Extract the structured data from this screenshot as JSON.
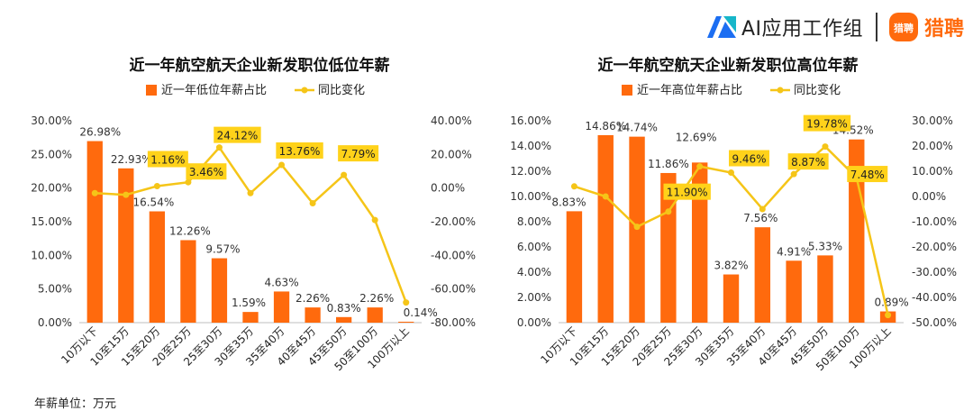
{
  "brand": {
    "ai_group_label": "AI应用工作组",
    "logo_icon_text": "猎聘",
    "liepin_label": "猎聘"
  },
  "footnote": "年薪单位：万元",
  "chart_data": [
    {
      "type": "bar+line",
      "title": "近一年航空航天企业新发职位低位年薪",
      "categories": [
        "10万以下",
        "10至15万",
        "15至20万",
        "20至25万",
        "25至30万",
        "30至35万",
        "35至40万",
        "40至45万",
        "45至50万",
        "50至100万",
        "100万以上"
      ],
      "series": [
        {
          "name": "近一年低位年薪占比",
          "type": "bar",
          "axis": "left",
          "color": "#ff6a0d",
          "values": [
            26.98,
            22.93,
            16.54,
            12.26,
            9.57,
            1.59,
            4.63,
            2.26,
            0.83,
            2.26,
            0.14
          ],
          "labels": [
            "26.98%",
            "22.93%",
            "16.54%",
            "12.26%",
            "9.57%",
            "1.59%",
            "4.63%",
            "2.26%",
            "0.83%",
            "2.26%",
            "0.14%"
          ]
        },
        {
          "name": "同比变化",
          "type": "line",
          "axis": "right",
          "color": "#f5c518",
          "values": [
            -3,
            -4,
            1.16,
            3.46,
            24.12,
            -3,
            13.76,
            -9,
            7.79,
            -19,
            -68
          ]
        }
      ],
      "highlighted_labels": [
        {
          "index": 2,
          "text": "1.16%"
        },
        {
          "index": 3,
          "text": "3.46%"
        },
        {
          "index": 4,
          "text": "24.12%"
        },
        {
          "index": 6,
          "text": "13.76%"
        },
        {
          "index": 8,
          "text": "7.79%"
        }
      ],
      "y_left": {
        "min": 0,
        "max": 30,
        "step": 5,
        "ticks": [
          "0.00%",
          "5.00%",
          "10.00%",
          "15.00%",
          "20.00%",
          "25.00%",
          "30.00%"
        ]
      },
      "y_right": {
        "min": -80,
        "max": 40,
        "step": 20,
        "ticks": [
          "-80.00%",
          "-60.00%",
          "-40.00%",
          "-20.00%",
          "0.00%",
          "20.00%",
          "40.00%"
        ]
      },
      "legend": "top",
      "grid": false
    },
    {
      "type": "bar+line",
      "title": "近一年航空航天企业新发职位高位年薪",
      "categories": [
        "10万以下",
        "10至15万",
        "15至20万",
        "20至25万",
        "25至30万",
        "30至35万",
        "35至40万",
        "40至45万",
        "45至50万",
        "50至100万",
        "100万以上"
      ],
      "series": [
        {
          "name": "近一年高位年薪占比",
          "type": "bar",
          "axis": "left",
          "color": "#ff6a0d",
          "values": [
            8.83,
            14.86,
            14.74,
            11.86,
            12.69,
            3.82,
            7.56,
            4.91,
            5.33,
            14.52,
            0.89
          ],
          "labels": [
            "8.83%",
            "14.86%",
            "14.74%",
            "11.86%",
            "12.69%",
            "3.82%",
            "7.56%",
            "4.91%",
            "5.33%",
            "14.52%",
            "0.89%"
          ]
        },
        {
          "name": "同比变化",
          "type": "line",
          "axis": "right",
          "color": "#f5c518",
          "values": [
            4,
            0,
            -12,
            -6,
            11.9,
            9.46,
            -5,
            8.87,
            19.78,
            7.48,
            -47
          ]
        }
      ],
      "highlighted_labels": [
        {
          "index": 4,
          "text": "11.90%"
        },
        {
          "index": 5,
          "text": "9.46%"
        },
        {
          "index": 7,
          "text": "8.87%"
        },
        {
          "index": 8,
          "text": "19.78%"
        },
        {
          "index": 9,
          "text": "7.48%"
        }
      ],
      "y_left": {
        "min": 0,
        "max": 16,
        "step": 2,
        "ticks": [
          "0.00%",
          "2.00%",
          "4.00%",
          "6.00%",
          "8.00%",
          "10.00%",
          "12.00%",
          "14.00%",
          "16.00%"
        ]
      },
      "y_right": {
        "min": -50,
        "max": 30,
        "step": 10,
        "ticks": [
          "-50.00%",
          "-40.00%",
          "-30.00%",
          "-20.00%",
          "-10.00%",
          "0.00%",
          "10.00%",
          "20.00%",
          "30.00%"
        ]
      },
      "legend": "top",
      "grid": false
    }
  ]
}
